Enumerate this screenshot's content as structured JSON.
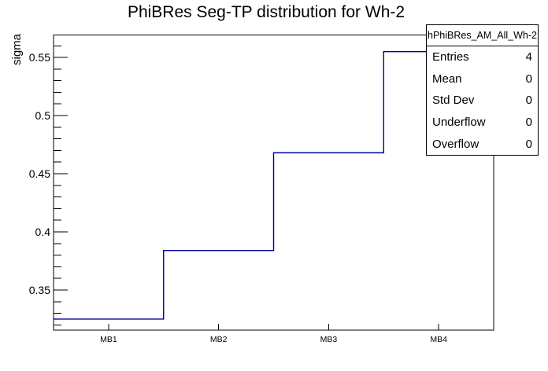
{
  "title": "PhiBRes Seg-TP distribution for Wh-2",
  "colors": {
    "hist_line": "#000099",
    "frame": "#000000",
    "background": "#ffffff",
    "text": "#000000"
  },
  "stats_box": {
    "header": "hPhiBRes_AM_All_Wh-2",
    "rows": [
      {
        "label": "Entries",
        "value": "4"
      },
      {
        "label": "Mean",
        "value": "0"
      },
      {
        "label": "Std Dev",
        "value": "0"
      },
      {
        "label": "Underflow",
        "value": "0"
      },
      {
        "label": "Overflow",
        "value": "0"
      }
    ]
  },
  "chart_data": {
    "type": "bar",
    "style": "step-histogram-outline",
    "title": "PhiBRes Seg-TP distribution for Wh-2",
    "xlabel": "",
    "ylabel": "sigma",
    "categories": [
      "MB1",
      "MB2",
      "MB3",
      "MB4"
    ],
    "values": [
      0.325,
      0.384,
      0.468,
      0.555
    ],
    "ylim": [
      0.3155,
      0.5693
    ],
    "y_major_ticks": [
      0.35,
      0.4,
      0.45,
      0.5,
      0.55
    ],
    "y_minor_step": 0.01,
    "grid": false,
    "legend": "none",
    "line_color": "#000099"
  }
}
